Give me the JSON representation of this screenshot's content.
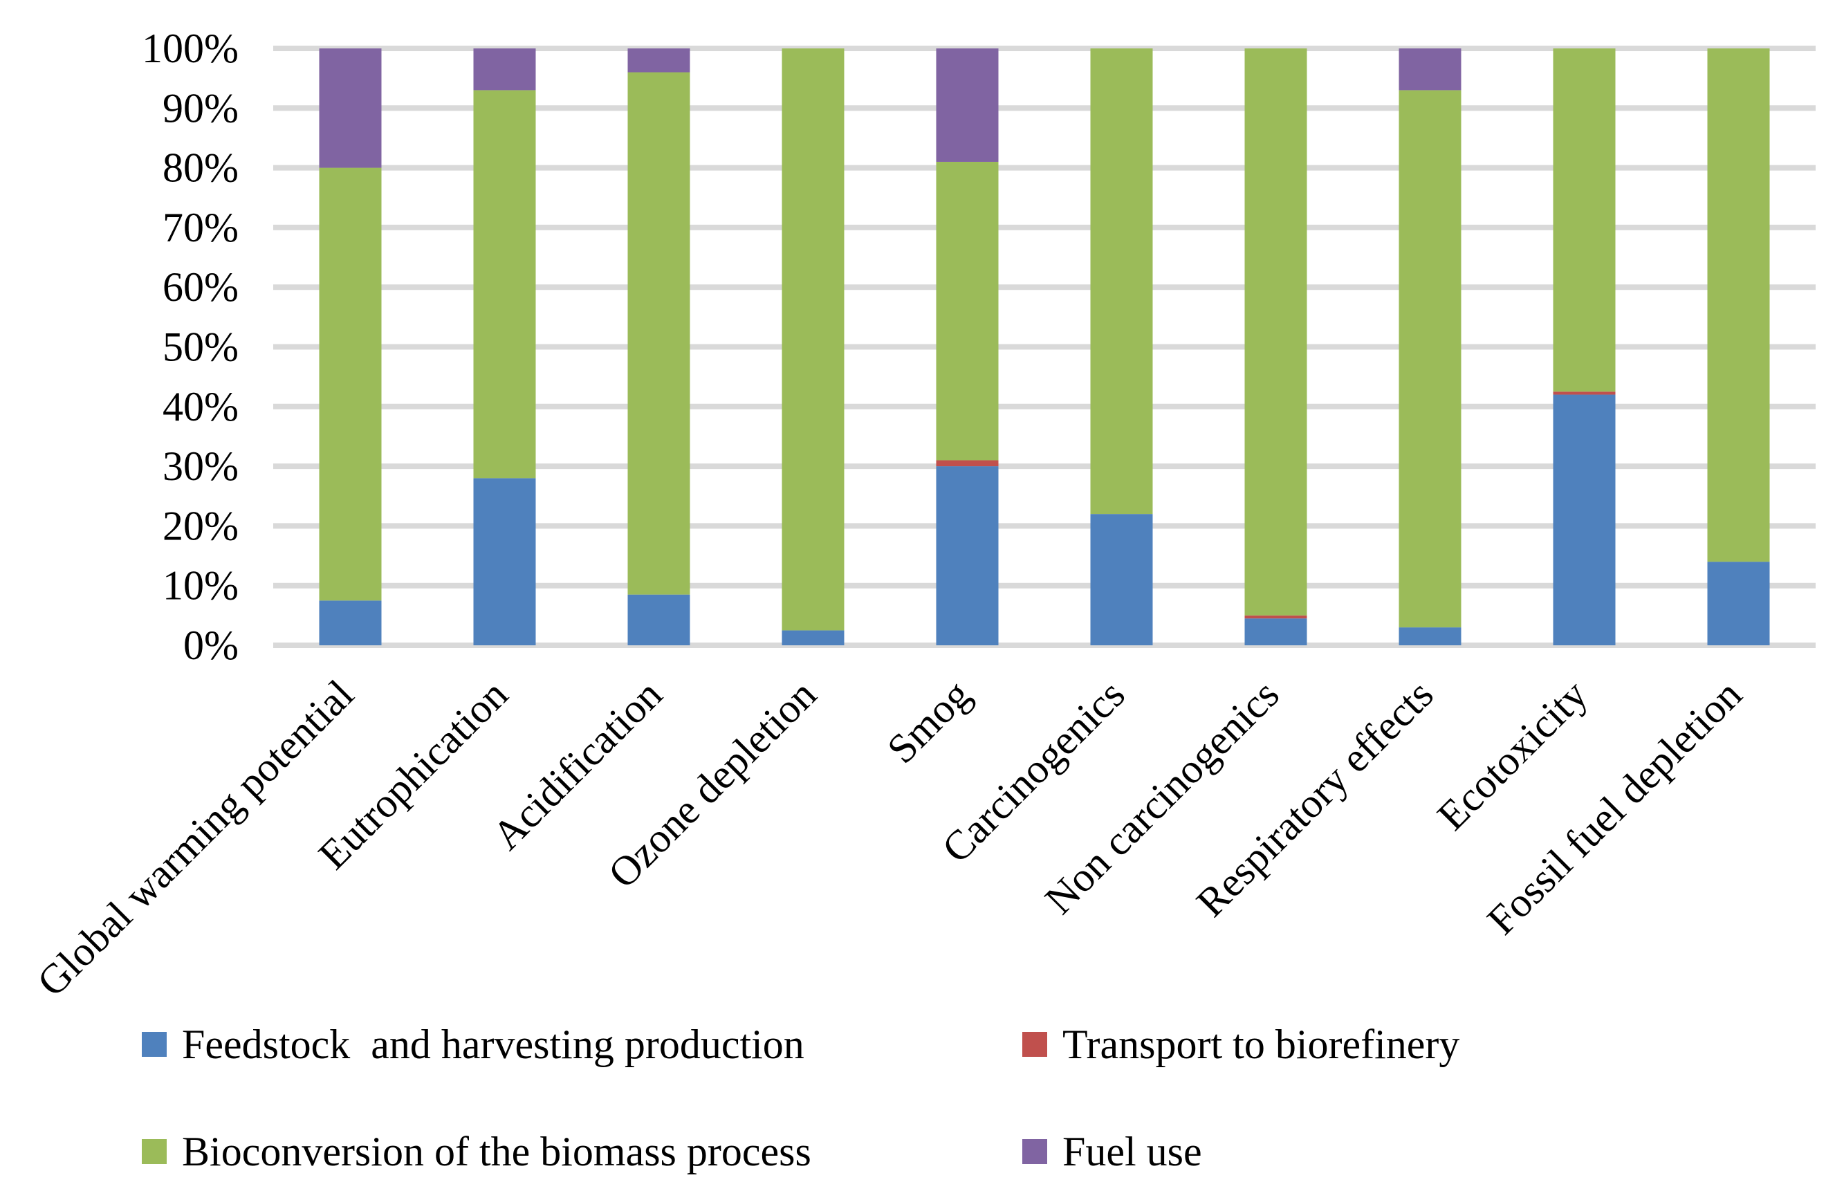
{
  "chart_data": {
    "type": "bar",
    "stacked": "percent",
    "title": "",
    "xlabel": "",
    "ylabel": "",
    "ylim": [
      0,
      100
    ],
    "y_ticks": [
      "0%",
      "10%",
      "20%",
      "30%",
      "40%",
      "50%",
      "60%",
      "70%",
      "80%",
      "90%",
      "100%"
    ],
    "categories": [
      "Global warming potential",
      "Eutrophication",
      "Acidification",
      "Ozone depletion",
      "Smog",
      "Carcinogenics",
      "Non carcinogenics",
      "Respiratory effects",
      "Ecotoxicity",
      "Fossil fuel depletion"
    ],
    "series": [
      {
        "name": "Feedstock  and harvesting production",
        "color": "#4F81BD",
        "values": [
          7.5,
          28,
          8.5,
          2.5,
          30,
          22,
          4.5,
          3,
          42,
          14
        ]
      },
      {
        "name": "Transport to biorefinery",
        "color": "#C0504D",
        "values": [
          0,
          0,
          0,
          0,
          1,
          0,
          0.5,
          0,
          0.5,
          0
        ]
      },
      {
        "name": "Bioconversion of the biomass process",
        "color": "#9BBB59",
        "values": [
          72.5,
          65,
          87.5,
          97.5,
          50,
          78,
          95,
          90,
          57.5,
          86
        ]
      },
      {
        "name": "Fuel use",
        "color": "#8064A2",
        "values": [
          20,
          7,
          4,
          0,
          19,
          0,
          0,
          7,
          0,
          0
        ]
      }
    ],
    "legend_position": "bottom",
    "grid": true
  }
}
